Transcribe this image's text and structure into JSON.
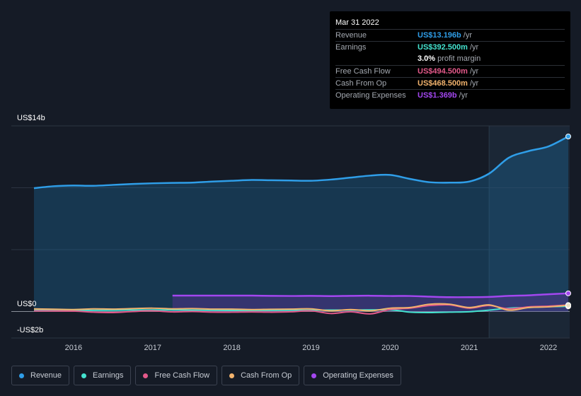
{
  "tooltip": {
    "date": "Mar 31 2022",
    "rows": [
      {
        "label": "Revenue",
        "value": "US$13.196b",
        "unit": "/yr",
        "color": "#2f9ee8"
      },
      {
        "label": "Earnings",
        "value": "US$392.500m",
        "unit": "/yr",
        "color": "#44e3cf"
      },
      {
        "label": "",
        "value": "3.0%",
        "unit": "profit margin",
        "color": "#ffffff"
      },
      {
        "label": "Free Cash Flow",
        "value": "US$494.500m",
        "unit": "/yr",
        "color": "#e3598a"
      },
      {
        "label": "Cash From Op",
        "value": "US$468.500m",
        "unit": "/yr",
        "color": "#f2b36d"
      },
      {
        "label": "Operating Expenses",
        "value": "US$1.369b",
        "unit": "/yr",
        "color": "#a347f0"
      }
    ]
  },
  "chart_data": {
    "type": "line",
    "ylim": [
      -2,
      14
    ],
    "y_tick_labels": {
      "top": "US$14b",
      "zero": "US$0",
      "bottom": "-US$2b"
    },
    "x_tick_labels": [
      "2016",
      "2017",
      "2018",
      "2019",
      "2020",
      "2021",
      "2022"
    ],
    "x_ticks": [
      2016,
      2017,
      2018,
      2019,
      2020,
      2021,
      2022
    ],
    "x_range": [
      2015.5,
      2022.25
    ],
    "highlight_start": 2021.25,
    "series": [
      {
        "name": "Revenue",
        "color": "#2f9ee8",
        "fill": true,
        "x": [
          2015.5,
          2015.75,
          2016.0,
          2016.25,
          2016.5,
          2016.75,
          2017.0,
          2017.25,
          2017.5,
          2017.75,
          2018.0,
          2018.25,
          2018.5,
          2018.75,
          2019.0,
          2019.25,
          2019.5,
          2019.75,
          2020.0,
          2020.25,
          2020.5,
          2020.75,
          2021.0,
          2021.25,
          2021.5,
          2021.75,
          2022.0,
          2022.25
        ],
        "y": [
          9.3,
          9.45,
          9.5,
          9.48,
          9.55,
          9.62,
          9.67,
          9.7,
          9.72,
          9.8,
          9.86,
          9.92,
          9.9,
          9.88,
          9.86,
          9.95,
          10.1,
          10.25,
          10.3,
          10.0,
          9.75,
          9.72,
          9.8,
          10.4,
          11.6,
          12.1,
          12.45,
          13.2
        ]
      },
      {
        "name": "Operating Expenses",
        "color": "#a347f0",
        "fill": true,
        "x": [
          2017.25,
          2017.5,
          2017.75,
          2018.0,
          2018.25,
          2018.5,
          2018.75,
          2019.0,
          2019.25,
          2019.5,
          2019.75,
          2020.0,
          2020.25,
          2020.5,
          2020.75,
          2021.0,
          2021.25,
          2021.5,
          2021.75,
          2022.0,
          2022.25
        ],
        "y": [
          1.2,
          1.2,
          1.2,
          1.2,
          1.2,
          1.18,
          1.17,
          1.18,
          1.16,
          1.18,
          1.19,
          1.17,
          1.17,
          1.12,
          1.08,
          1.08,
          1.1,
          1.18,
          1.22,
          1.3,
          1.37
        ]
      },
      {
        "name": "Earnings",
        "color": "#44e3cf",
        "fill": false,
        "x": [
          2015.5,
          2016.0,
          2016.5,
          2017.0,
          2017.5,
          2018.0,
          2018.5,
          2019.0,
          2019.5,
          2020.0,
          2020.25,
          2020.5,
          2020.75,
          2021.0,
          2021.25,
          2021.5,
          2021.75,
          2022.0,
          2022.25
        ],
        "y": [
          0.1,
          0.08,
          0.1,
          0.12,
          0.1,
          0.08,
          0.09,
          0.1,
          0.11,
          0.12,
          -0.05,
          -0.08,
          -0.05,
          -0.02,
          0.1,
          0.25,
          0.3,
          0.36,
          0.39
        ]
      },
      {
        "name": "Free Cash Flow",
        "color": "#e3598a",
        "fill": false,
        "x": [
          2015.5,
          2016.0,
          2016.25,
          2016.5,
          2016.75,
          2017.0,
          2017.25,
          2017.5,
          2017.75,
          2018.0,
          2018.25,
          2018.5,
          2018.75,
          2019.0,
          2019.25,
          2019.5,
          2019.75,
          2020.0,
          2020.25,
          2020.5,
          2020.75,
          2021.0,
          2021.25,
          2021.5,
          2021.75,
          2022.0,
          2022.25
        ],
        "y": [
          0.05,
          0.03,
          -0.05,
          -0.08,
          0.0,
          0.05,
          -0.03,
          0.0,
          -0.05,
          -0.05,
          -0.03,
          -0.05,
          -0.02,
          0.05,
          -0.15,
          -0.02,
          -0.18,
          0.15,
          0.25,
          0.45,
          0.5,
          0.25,
          0.45,
          0.2,
          0.35,
          0.4,
          0.49
        ]
      },
      {
        "name": "Cash From Op",
        "color": "#f2b36d",
        "fill": false,
        "x": [
          2015.5,
          2016.0,
          2016.25,
          2016.5,
          2016.75,
          2017.0,
          2017.25,
          2017.5,
          2017.75,
          2018.0,
          2018.25,
          2018.5,
          2018.75,
          2019.0,
          2019.25,
          2019.5,
          2019.75,
          2020.0,
          2020.25,
          2020.5,
          2020.75,
          2021.0,
          2021.25,
          2021.5,
          2021.75,
          2022.0,
          2022.25
        ],
        "y": [
          0.2,
          0.15,
          0.2,
          0.18,
          0.22,
          0.25,
          0.2,
          0.22,
          0.18,
          0.18,
          0.15,
          0.17,
          0.18,
          0.2,
          0.05,
          0.15,
          0.05,
          0.25,
          0.3,
          0.55,
          0.55,
          0.3,
          0.5,
          0.1,
          0.3,
          0.35,
          0.47
        ]
      }
    ]
  },
  "legend": [
    {
      "label": "Revenue",
      "color": "#2f9ee8"
    },
    {
      "label": "Earnings",
      "color": "#44e3cf"
    },
    {
      "label": "Free Cash Flow",
      "color": "#e3598a"
    },
    {
      "label": "Cash From Op",
      "color": "#f2b36d"
    },
    {
      "label": "Operating Expenses",
      "color": "#a347f0"
    }
  ]
}
